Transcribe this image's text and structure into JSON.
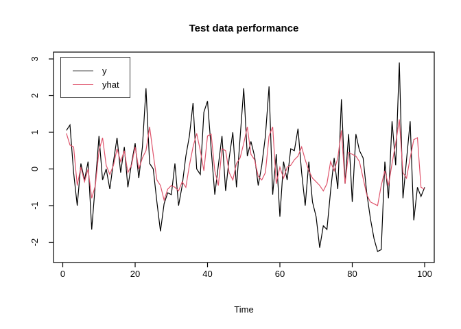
{
  "title": "Test data performance",
  "axes": {
    "x_label": "Time",
    "x_ticks": [
      0,
      20,
      40,
      60,
      80,
      100
    ],
    "y_ticks": [
      3,
      2,
      1,
      0,
      -1,
      -2
    ]
  },
  "legend": {
    "items": [
      {
        "label": "y",
        "color": "#000000"
      },
      {
        "label": "yhat",
        "color": "#DF536B"
      }
    ]
  },
  "colors": {
    "series_y": "#000000",
    "series_yhat": "#DF536B",
    "axis": "#000000",
    "background": "#ffffff"
  },
  "chart_data": {
    "type": "line",
    "title": "Test data performance",
    "xlabel": "Time",
    "ylabel": "",
    "x_start": 1,
    "x_step": 1,
    "n_points": 100,
    "xlim_shown": [
      -2.5,
      102.7
    ],
    "ylim_shown": [
      -2.53,
      3.19
    ],
    "grid": false,
    "legend_position": "topleft",
    "series": [
      {
        "name": "y",
        "color": "#000000",
        "values": [
          1.05,
          1.2,
          -0.1,
          -1.0,
          0.15,
          -0.3,
          0.2,
          -1.65,
          -0.4,
          0.9,
          -0.3,
          0.0,
          -0.55,
          0.2,
          0.85,
          -0.1,
          0.6,
          -0.5,
          0.15,
          0.7,
          -0.25,
          0.6,
          2.2,
          0.15,
          0.0,
          -0.9,
          -1.7,
          -0.95,
          -0.65,
          -0.7,
          0.15,
          -1.0,
          -0.45,
          0.35,
          0.9,
          1.8,
          0.0,
          -0.15,
          1.55,
          1.85,
          0.55,
          -0.7,
          0.1,
          0.9,
          -0.6,
          0.3,
          1.0,
          -0.5,
          0.85,
          2.2,
          0.35,
          0.75,
          0.35,
          -0.45,
          0.1,
          0.9,
          2.25,
          -0.7,
          0.4,
          -1.3,
          0.2,
          -0.3,
          0.55,
          0.5,
          1.1,
          -0.1,
          -1.0,
          0.2,
          -0.9,
          -1.3,
          -2.15,
          -1.55,
          -1.65,
          -0.6,
          0.3,
          -0.55,
          1.9,
          -0.4,
          0.95,
          -0.9,
          0.95,
          0.5,
          0.3,
          -0.65,
          -1.35,
          -1.9,
          -2.25,
          -2.2,
          0.2,
          -0.8,
          1.3,
          0.1,
          2.9,
          -0.8,
          0.25,
          1.3,
          -1.4,
          -0.5,
          -0.75,
          -0.5
        ]
      },
      {
        "name": "yhat",
        "color": "#DF536B",
        "values": [
          0.97,
          0.65,
          0.6,
          -0.45,
          0.05,
          -0.35,
          0.0,
          -0.8,
          -0.45,
          0.5,
          0.85,
          0.1,
          -0.15,
          0.1,
          0.55,
          0.2,
          0.5,
          -0.1,
          0.1,
          0.6,
          0.0,
          0.3,
          0.5,
          1.15,
          0.4,
          -0.3,
          -0.45,
          -0.85,
          -0.55,
          -0.45,
          -0.5,
          -0.6,
          -0.35,
          -0.5,
          0.1,
          0.6,
          0.97,
          0.5,
          -0.05,
          0.9,
          0.95,
          -0.05,
          -0.45,
          0.55,
          0.5,
          -0.1,
          -0.3,
          0.15,
          0.3,
          0.7,
          1.15,
          0.4,
          0.25,
          -0.2,
          -0.3,
          -0.1,
          0.9,
          1.15,
          -0.4,
          0.05,
          -0.25,
          0.05,
          0.1,
          0.25,
          0.35,
          0.6,
          0.25,
          -0.05,
          -0.25,
          -0.35,
          -0.45,
          -0.6,
          -0.4,
          0.2,
          -0.05,
          0.3,
          1.05,
          -0.4,
          0.45,
          0.4,
          0.35,
          0.2,
          -0.25,
          -0.7,
          -0.9,
          -0.95,
          -1.0,
          -0.45,
          -0.05,
          -0.45,
          0.15,
          0.7,
          1.35,
          -0.1,
          -0.25,
          0.3,
          0.8,
          0.85,
          -0.5,
          -0.55
        ]
      }
    ]
  }
}
